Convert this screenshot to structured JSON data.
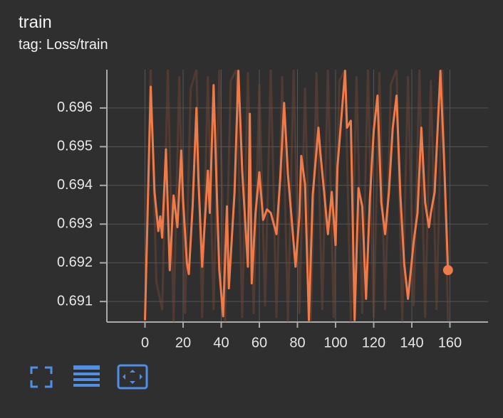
{
  "title": "train",
  "subtitle": "tag: Loss/train",
  "chart_data": {
    "type": "line",
    "xlim": [
      -20,
      180
    ],
    "ylim": [
      0.69047,
      0.69699
    ],
    "xticks": [
      0,
      20,
      40,
      60,
      80,
      100,
      120,
      140,
      160
    ],
    "yticks": [
      0.691,
      0.692,
      0.693,
      0.694,
      0.695,
      0.696
    ],
    "grid": true,
    "series": [
      {
        "color": "#7a4a36",
        "opacity": 0.45,
        "x": [
          0,
          3,
          6,
          9,
          12,
          15,
          18,
          21,
          24,
          27,
          30,
          33,
          36,
          39,
          42,
          45,
          48,
          51,
          54,
          57,
          60,
          63,
          66,
          69,
          72,
          75,
          78,
          81,
          84,
          87,
          90,
          93,
          96,
          99,
          102,
          105,
          108,
          111,
          114,
          117,
          120,
          123,
          126,
          129,
          132,
          135,
          138,
          141,
          144,
          147,
          150,
          153,
          156,
          159
        ],
        "values": [
          0.6905,
          0.697,
          0.6915,
          0.6908,
          0.697,
          0.6905,
          0.6968,
          0.6907,
          0.6965,
          0.697,
          0.6906,
          0.6968,
          0.6908,
          0.697,
          0.6905,
          0.6967,
          0.697,
          0.6906,
          0.6969,
          0.6907,
          0.6966,
          0.6909,
          0.697,
          0.6906,
          0.6968,
          0.6905,
          0.697,
          0.6907,
          0.6965,
          0.6905,
          0.6969,
          0.6908,
          0.697,
          0.6906,
          0.6967,
          0.697,
          0.6905,
          0.6968,
          0.6907,
          0.697,
          0.6906,
          0.6969,
          0.6908,
          0.6966,
          0.697,
          0.6905,
          0.6968,
          0.6909,
          0.697,
          0.6906,
          0.6967,
          0.6908,
          0.697,
          0.6905
        ]
      },
      {
        "color": "#f07b48",
        "opacity": 1,
        "x": [
          0,
          3,
          5,
          7,
          8,
          9,
          11,
          13,
          15,
          17,
          19,
          20,
          22,
          23,
          25,
          27,
          28,
          30,
          33,
          34,
          36,
          38,
          39,
          41,
          43,
          44,
          47,
          49,
          51,
          54,
          55,
          56,
          58,
          60,
          62,
          64,
          66,
          69,
          71,
          73,
          75,
          77,
          79,
          81,
          82,
          84,
          86,
          88,
          91,
          92,
          94,
          96,
          98,
          100,
          101,
          105,
          106,
          108,
          110,
          112,
          114,
          116,
          118,
          120,
          122,
          124,
          126,
          128,
          130,
          132,
          134,
          136,
          138,
          141,
          143,
          145,
          147,
          149,
          150,
          152,
          155,
          157,
          159
        ],
        "values": [
          0.69052,
          0.69655,
          0.69383,
          0.69282,
          0.6932,
          0.69265,
          0.69493,
          0.69181,
          0.69374,
          0.69292,
          0.6949,
          0.69361,
          0.69199,
          0.69171,
          0.69346,
          0.696,
          0.6942,
          0.6919,
          0.69438,
          0.69329,
          0.69659,
          0.69329,
          0.69181,
          0.69062,
          0.69346,
          0.69134,
          0.69383,
          0.69696,
          0.69438,
          0.6919,
          0.69585,
          0.69147,
          0.69329,
          0.69434,
          0.69311,
          0.69338,
          0.69329,
          0.69274,
          0.6942,
          0.69613,
          0.69429,
          0.69311,
          0.6919,
          0.6932,
          0.69476,
          0.69402,
          0.69052,
          0.69374,
          0.69549,
          0.69485,
          0.69383,
          0.69274,
          0.69383,
          0.69246,
          0.69448,
          0.69696,
          0.69549,
          0.69567,
          0.69052,
          0.69393,
          0.69346,
          0.69107,
          0.69365,
          0.6954,
          0.69632,
          0.69356,
          0.69274,
          0.69383,
          0.69549,
          0.69632,
          0.69374,
          0.69199,
          0.69107,
          0.69255,
          0.69329,
          0.69549,
          0.69356,
          0.69292,
          0.69329,
          0.69383,
          0.69696,
          0.69457,
          0.69181
        ]
      }
    ]
  }
}
